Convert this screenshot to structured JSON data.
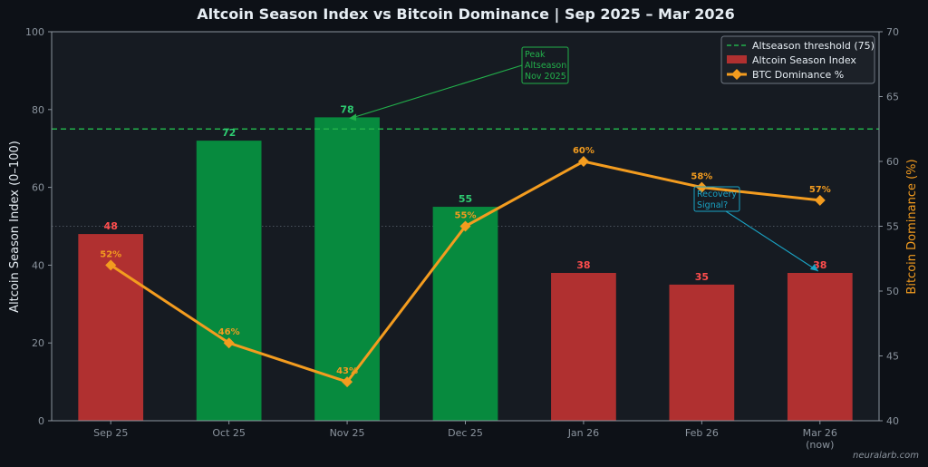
{
  "chart_data": {
    "type": "bar",
    "title": "Altcoin Season Index vs Bitcoin Dominance  |  Sep 2025 – Mar 2026",
    "ylabel_left": "Altcoin Season Index (0–100)",
    "ylabel_right": "Bitcoin Dominance (%)",
    "categories": [
      "Sep 25",
      "Oct 25",
      "Nov 25",
      "Dec 25",
      "Jan 26",
      "Feb 26",
      "Mar 26"
    ],
    "category_sublabels": [
      "",
      "",
      "",
      "",
      "",
      "",
      "(now)"
    ],
    "left_ylim": [
      0,
      100
    ],
    "left_yticks": [
      0,
      20,
      40,
      60,
      80,
      100
    ],
    "right_ylim": [
      40,
      70
    ],
    "right_yticks": [
      40,
      45,
      50,
      55,
      60,
      65,
      70
    ],
    "grid": false,
    "midline_value": 50,
    "legend_position": "top-right",
    "series": [
      {
        "name": "Altcoin Season Index",
        "kind": "bar",
        "axis": "left",
        "values": [
          48,
          72,
          78,
          55,
          38,
          35,
          38
        ],
        "labels": [
          "48",
          "72",
          "78",
          "55",
          "38",
          "35",
          "38"
        ]
      },
      {
        "name": "BTC Dominance %",
        "kind": "line",
        "axis": "right",
        "values": [
          52,
          46,
          43,
          55,
          60,
          58,
          57
        ],
        "labels": [
          "52%",
          "46%",
          "43%",
          "55%",
          "60%",
          "58%",
          "57%"
        ],
        "color": "#f39c1f"
      }
    ],
    "threshold": {
      "name": "Altseason threshold (75)",
      "value": 75,
      "color": "#22b04b"
    },
    "colors": {
      "bar_above": "#078a3e",
      "bar_below": "#b03030",
      "label_above": "#2ecc71",
      "label_below": "#ff4d4d",
      "line": "#f39c1f",
      "plot_bg": "#161b22",
      "page_bg": "#0d1117",
      "axis": "#8b949e",
      "annotation_peak": "#22b04b",
      "annotation_recovery": "#1aa3c4"
    },
    "annotations": [
      {
        "text": [
          "Peak",
          "Altseason",
          "Nov 2025"
        ],
        "points_to": {
          "category": "Nov 25",
          "value": 78,
          "axis": "left"
        },
        "color": "#22b04b"
      },
      {
        "text": [
          "Recovery",
          "Signal?"
        ],
        "points_to": {
          "category": "Mar 26",
          "value": 38,
          "axis": "left"
        },
        "color": "#1aa3c4"
      }
    ],
    "watermark": "neuralarb.com"
  }
}
